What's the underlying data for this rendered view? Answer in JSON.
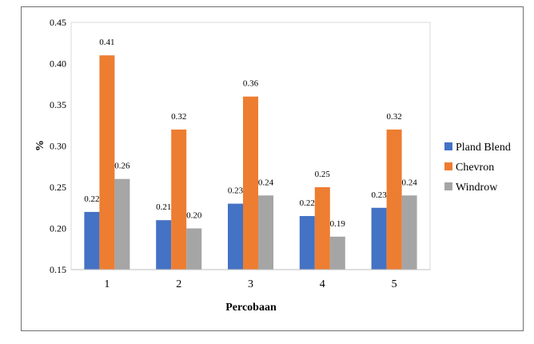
{
  "chart_data": {
    "type": "bar",
    "categories": [
      "1",
      "2",
      "3",
      "4",
      "5"
    ],
    "series": [
      {
        "name": "Pland Blend",
        "color": "#4472c4",
        "values": [
          0.22,
          0.21,
          0.23,
          0.215,
          0.225
        ],
        "labels": [
          "0.22",
          "0.21",
          "0.23",
          "0.22",
          "0.23"
        ]
      },
      {
        "name": "Chevron",
        "color": "#ed7d31",
        "values": [
          0.41,
          0.32,
          0.36,
          0.25,
          0.32
        ],
        "labels": [
          "0.41",
          "0.32",
          "0.36",
          "0.25",
          "0.32"
        ]
      },
      {
        "name": "Windrow",
        "color": "#a5a5a5",
        "values": [
          0.26,
          0.2,
          0.24,
          0.19,
          0.24
        ],
        "labels": [
          "0.26",
          "0.20",
          "0.24",
          "0.19",
          "0.24"
        ]
      }
    ],
    "xlabel": "Percobaan",
    "ylabel": "%",
    "ylim": [
      0.15,
      0.45
    ],
    "yticks": [
      "0.15",
      "0.20",
      "0.25",
      "0.30",
      "0.35",
      "0.40",
      "0.45"
    ],
    "grid": false,
    "legend_position": "right"
  }
}
